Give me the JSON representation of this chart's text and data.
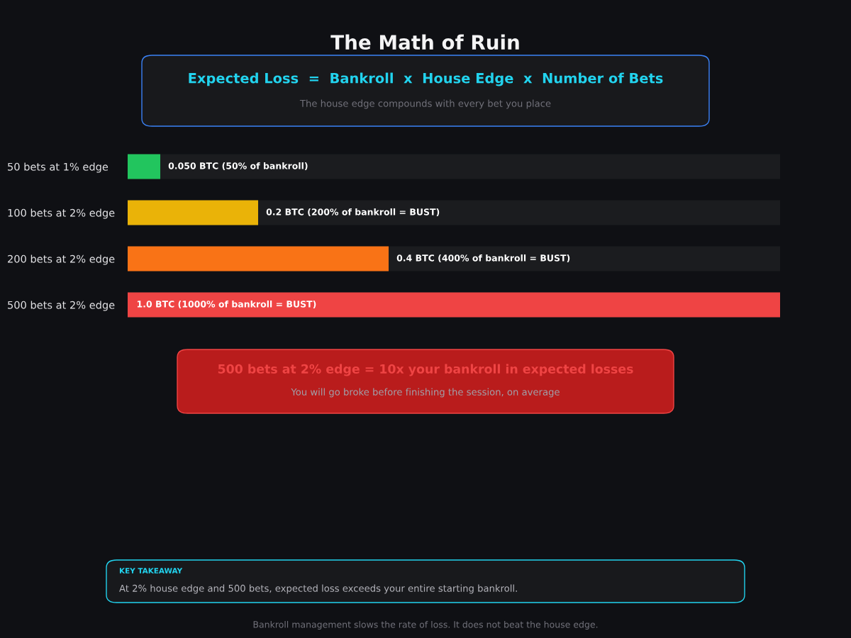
{
  "chart_data": {
    "type": "bar",
    "orientation": "horizontal",
    "title": "The Math of Ruin",
    "subtitle": "Expected Loss  =  Bankroll  x  House Edge  x  Number of Bets",
    "categories": [
      "50 bets at 1% edge",
      "100 bets at 2% edge",
      "200 bets at 2% edge",
      "500 bets at 2% edge"
    ],
    "values": [
      0.05,
      0.2,
      0.4,
      1.0
    ],
    "colors": [
      "#22c55e",
      "#eab308",
      "#f97316",
      "#ef4444"
    ],
    "value_labels": [
      "0.050 BTC (50% of bankroll)",
      "0.2 BTC (200% of bankroll = BUST)",
      "0.4 BTC (400% of bankroll = BUST)",
      "1.0 BTC (1000% of bankroll = BUST)"
    ],
    "annotations": [
      "The house edge compounds with every bet you place",
      "500 bets at 2% edge = 10x your bankroll in expected losses",
      "You will go broke before finishing the session, on average",
      "KEY TAKEAWAY",
      "At 2% house edge and 500 bets, expected loss exceeds your entire starting bankroll.",
      "Bankroll management slows the rate of loss. It does not beat the house edge."
    ]
  }
}
